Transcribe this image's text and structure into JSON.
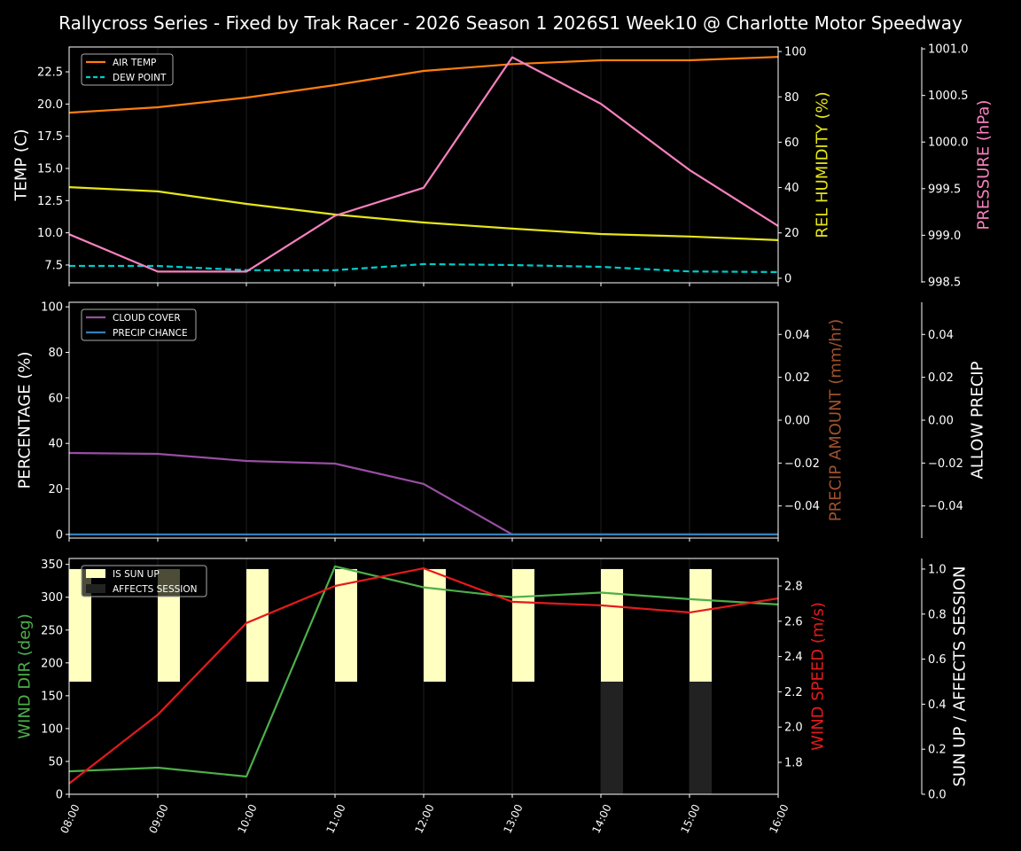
{
  "title": "Rallycross Series - Fixed by Trak Racer - 2026 Season 1 2026S1 Week10 @ Charlotte Motor Speedway",
  "chart_data": [
    {
      "type": "line",
      "x": [
        "08:00",
        "09:00",
        "10:00",
        "11:00",
        "12:00",
        "13:00",
        "14:00",
        "15:00",
        "16:00"
      ],
      "grid": "vertical",
      "legend_placement": "upper-left",
      "axes": {
        "left": {
          "label": "TEMP (C)",
          "color": "#ffffff",
          "ylim": [
            6.12,
            24.43
          ],
          "ticks": [
            7.5,
            10.0,
            12.5,
            15.0,
            17.5,
            20.0,
            22.5
          ],
          "tick_labels": [
            "7.5",
            "10.0",
            "12.5",
            "15.0",
            "17.5",
            "20.0",
            "22.5"
          ]
        },
        "right1": {
          "label": "REL HUMIDITY (%)",
          "color": "#e6e61a",
          "ylim": [
            -2,
            102
          ],
          "ticks": [
            0,
            20,
            40,
            60,
            80,
            100
          ],
          "tick_labels": [
            "0",
            "20",
            "40",
            "60",
            "80",
            "100"
          ]
        },
        "right2": {
          "label": "PRESSURE (hPa)",
          "color": "#f781bf",
          "ylim": [
            998.49,
            1001.02
          ],
          "ticks": [
            998.5,
            999.0,
            999.5,
            1000.0,
            1000.5,
            1001.0
          ],
          "tick_labels": [
            "998.5",
            "999.0",
            "999.5",
            "1000.0",
            "1000.5",
            "1001.0"
          ]
        }
      },
      "series": [
        {
          "name": "AIR TEMP",
          "axis": "left",
          "color": "#ff7f0e",
          "style": "solid",
          "legend": true,
          "values": [
            19.33,
            19.75,
            20.5,
            21.47,
            22.57,
            23.1,
            23.4,
            23.4,
            23.66
          ]
        },
        {
          "name": "DEW POINT",
          "axis": "left",
          "color": "#00cccc",
          "style": "dashed",
          "legend": true,
          "values": [
            7.43,
            7.43,
            7.1,
            7.1,
            7.57,
            7.5,
            7.36,
            7.0,
            6.95
          ]
        },
        {
          "axis": "right1",
          "color": "#e6e61a",
          "style": "solid",
          "legend": false,
          "values": [
            40.2,
            38.3,
            32.8,
            28.1,
            24.6,
            21.9,
            19.5,
            18.4,
            16.8
          ]
        },
        {
          "axis": "right2",
          "color": "#f781bf",
          "style": "solid",
          "legend": false,
          "values": [
            999.01,
            998.61,
            998.61,
            999.21,
            999.51,
            1000.91,
            1000.41,
            999.7,
            999.1
          ]
        }
      ]
    },
    {
      "type": "line",
      "x": [
        "08:00",
        "09:00",
        "10:00",
        "11:00",
        "12:00",
        "13:00",
        "14:00",
        "15:00",
        "16:00"
      ],
      "grid": "vertical",
      "legend_placement": "upper-left",
      "axes": {
        "left": {
          "label": "PERCENTAGE (%)",
          "color": "#ffffff",
          "ylim": [
            -1.6,
            102
          ],
          "ticks": [
            0,
            20,
            40,
            60,
            80,
            100
          ],
          "tick_labels": [
            "0",
            "20",
            "40",
            "60",
            "80",
            "100"
          ]
        },
        "right1": {
          "label": "PRECIP AMOUNT (mm/hr)",
          "color": "#a0522d",
          "ylim": [
            -0.055,
            0.055
          ],
          "ticks": [
            -0.04,
            -0.02,
            0,
            0.02,
            0.04
          ],
          "tick_labels": [
            "−0.04",
            "−0.02",
            "0.00",
            "0.02",
            "0.04"
          ]
        },
        "right2": {
          "label": "ALLOW PRECIP",
          "color": "#ffffff",
          "ylim": [
            -0.055,
            0.055
          ],
          "ticks": [
            -0.04,
            -0.02,
            0,
            0.02,
            0.04
          ],
          "tick_labels": [
            "−0.04",
            "−0.02",
            "0.00",
            "0.02",
            "0.04"
          ]
        }
      },
      "series": [
        {
          "name": "CLOUD COVER",
          "axis": "left",
          "color": "#984ea3",
          "style": "solid",
          "legend": true,
          "values": [
            35.8,
            35.4,
            32.3,
            31.1,
            22.2,
            0,
            0,
            0,
            0
          ]
        },
        {
          "name": "PRECIP CHANCE",
          "axis": "left",
          "color": "#377eb8",
          "style": "solid",
          "legend": true,
          "values": [
            0,
            0,
            0,
            0,
            0,
            0,
            0,
            0,
            0
          ]
        }
      ]
    },
    {
      "type": "line",
      "x": [
        "08:00",
        "09:00",
        "10:00",
        "11:00",
        "12:00",
        "13:00",
        "14:00",
        "15:00",
        "16:00"
      ],
      "grid": "vertical",
      "legend_placement": "upper-left",
      "axes": {
        "left": {
          "label": "WIND DIR (deg)",
          "color": "#4daf4a",
          "ylim": [
            0,
            359
          ],
          "ticks": [
            0,
            50,
            100,
            150,
            200,
            250,
            300,
            350
          ],
          "tick_labels": [
            "0",
            "50",
            "100",
            "150",
            "200",
            "250",
            "300",
            "350"
          ]
        },
        "right1": {
          "label": "WIND SPEED (m/s)",
          "color": "#e41a1c",
          "ylim": [
            1.619,
            2.956
          ],
          "ticks": [
            1.8,
            2.0,
            2.2,
            2.4,
            2.6,
            2.8
          ],
          "tick_labels": [
            "1.8",
            "2.0",
            "2.2",
            "2.4",
            "2.6",
            "2.8"
          ]
        },
        "right2": {
          "label": "SUN UP / AFFECTS SESSION",
          "color": "#ffffff",
          "ylim": [
            0,
            1.047
          ],
          "ticks": [
            0,
            0.2,
            0.4,
            0.6,
            0.8,
            1.0
          ],
          "tick_labels": [
            "0.0",
            "0.2",
            "0.4",
            "0.6",
            "0.8",
            "1.0"
          ]
        }
      },
      "bars": [
        {
          "name": "IS SUN UP",
          "color": "#ffffc0",
          "values": [
            1,
            1,
            1,
            1,
            1,
            1,
            1,
            1,
            0
          ]
        },
        {
          "name": "AFFECTS SESSION",
          "color": "#222222",
          "values": [
            0,
            0,
            0,
            0,
            0,
            0,
            1,
            1,
            0
          ]
        }
      ],
      "series": [
        {
          "axis": "left",
          "color": "#4daf4a",
          "style": "solid",
          "legend": false,
          "values": [
            35,
            40.5,
            27,
            347,
            315,
            300,
            307,
            297,
            289
          ]
        },
        {
          "axis": "right1",
          "color": "#e41a1c",
          "style": "solid",
          "legend": false,
          "values": [
            1.68,
            2.07,
            2.59,
            2.8,
            2.9,
            2.71,
            2.69,
            2.65,
            2.73
          ]
        }
      ]
    }
  ]
}
